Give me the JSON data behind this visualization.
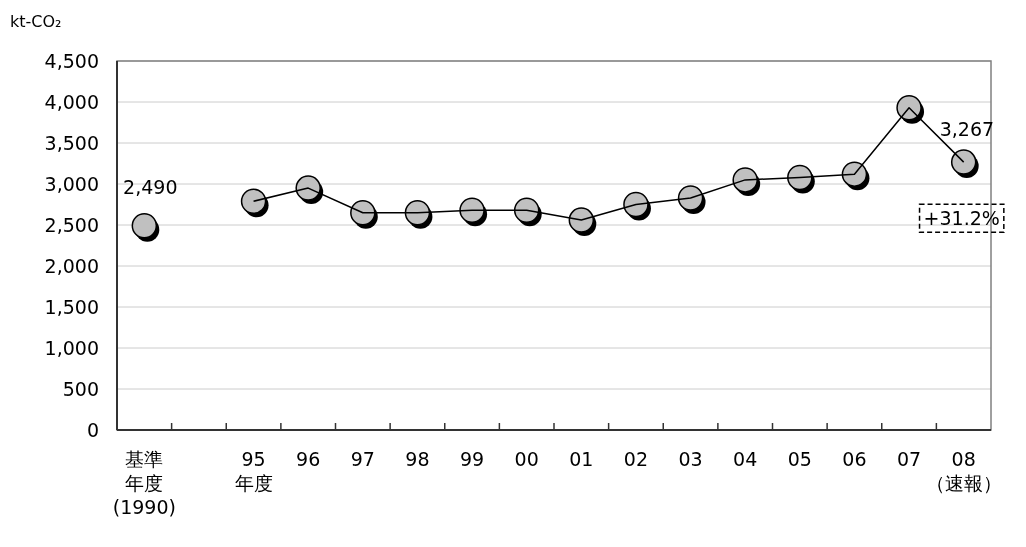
{
  "chart_data": {
    "type": "line",
    "ylabel": "kt-CO₂",
    "categories": [
      "基準年度(1990)",
      null,
      "95年度",
      "96",
      "97",
      "98",
      "99",
      "00",
      "01",
      "02",
      "03",
      "04",
      "05",
      "06",
      "07",
      "08（速報）"
    ],
    "series": [
      {
        "color": "#c0c0c0",
        "values": [
          2490,
          null,
          2790,
          2950,
          2650,
          2650,
          2680,
          2680,
          2560,
          2750,
          2830,
          3050,
          3080,
          3120,
          3930,
          3267
        ],
        "value_labels": [
          "2,490",
          null,
          null,
          null,
          null,
          null,
          null,
          null,
          null,
          null,
          null,
          null,
          null,
          null,
          null,
          "3,267"
        ]
      }
    ],
    "ylim": [
      0,
      4500
    ],
    "yticks": [
      {
        "value": 0,
        "label": "0"
      },
      {
        "value": 500,
        "label": "500"
      },
      {
        "value": 1000,
        "label": "1,000"
      },
      {
        "value": 1500,
        "label": "1,500"
      },
      {
        "value": 2000,
        "label": "2,000"
      },
      {
        "value": 2500,
        "label": "2,500"
      },
      {
        "value": 3000,
        "label": "3,000"
      },
      {
        "value": 3500,
        "label": "3,500"
      },
      {
        "value": 4000,
        "label": "4,000"
      },
      {
        "value": 4500,
        "label": "4,500"
      }
    ],
    "grid": "y",
    "marker": "circle",
    "line_style": "solid",
    "annotations": [
      "+31.2%"
    ]
  }
}
